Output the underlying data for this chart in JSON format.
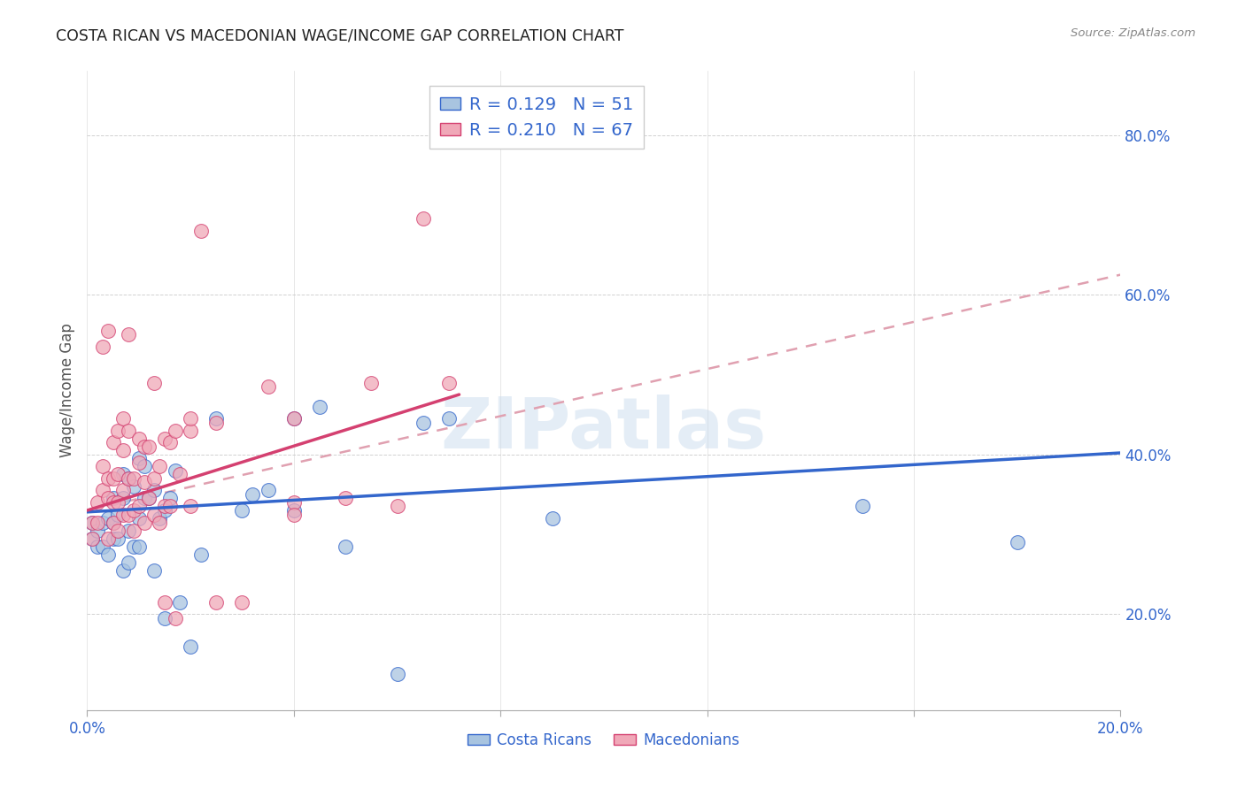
{
  "title": "COSTA RICAN VS MACEDONIAN WAGE/INCOME GAP CORRELATION CHART",
  "source": "Source: ZipAtlas.com",
  "ylabel": "Wage/Income Gap",
  "xlim": [
    0.0,
    0.2
  ],
  "ylim": [
    0.08,
    0.88
  ],
  "yticks": [
    0.2,
    0.4,
    0.6,
    0.8
  ],
  "ytick_labels": [
    "20.0%",
    "40.0%",
    "60.0%",
    "80.0%"
  ],
  "xticks": [
    0.0,
    0.04,
    0.08,
    0.12,
    0.16,
    0.2
  ],
  "xtick_labels": [
    "0.0%",
    "",
    "",
    "",
    "",
    "20.0%"
  ],
  "blue_R": 0.129,
  "blue_N": 51,
  "pink_R": 0.21,
  "pink_N": 67,
  "blue_color": "#a8c4e0",
  "pink_color": "#f0a8b8",
  "trend_blue": "#3366cc",
  "trend_pink": "#d44070",
  "trend_dashed_color": "#e0a0b0",
  "watermark": "ZIPatlas",
  "blue_line_x": [
    0.0,
    0.2
  ],
  "blue_line_y": [
    0.328,
    0.402
  ],
  "pink_line_x": [
    0.0,
    0.072
  ],
  "pink_line_y": [
    0.33,
    0.475
  ],
  "dashed_line_x": [
    0.0,
    0.2
  ],
  "dashed_line_y": [
    0.33,
    0.625
  ],
  "blue_x": [
    0.001,
    0.001,
    0.002,
    0.002,
    0.003,
    0.003,
    0.004,
    0.004,
    0.005,
    0.005,
    0.005,
    0.006,
    0.006,
    0.007,
    0.007,
    0.007,
    0.008,
    0.008,
    0.008,
    0.009,
    0.009,
    0.01,
    0.01,
    0.01,
    0.011,
    0.011,
    0.012,
    0.013,
    0.013,
    0.014,
    0.015,
    0.015,
    0.016,
    0.017,
    0.018,
    0.02,
    0.022,
    0.025,
    0.03,
    0.032,
    0.035,
    0.04,
    0.04,
    0.045,
    0.05,
    0.06,
    0.065,
    0.07,
    0.09,
    0.15,
    0.18
  ],
  "blue_y": [
    0.295,
    0.315,
    0.285,
    0.305,
    0.285,
    0.315,
    0.275,
    0.32,
    0.295,
    0.315,
    0.345,
    0.295,
    0.325,
    0.255,
    0.345,
    0.375,
    0.265,
    0.305,
    0.37,
    0.285,
    0.36,
    0.285,
    0.32,
    0.395,
    0.345,
    0.385,
    0.345,
    0.255,
    0.355,
    0.32,
    0.33,
    0.195,
    0.345,
    0.38,
    0.215,
    0.16,
    0.275,
    0.445,
    0.33,
    0.35,
    0.355,
    0.33,
    0.445,
    0.46,
    0.285,
    0.125,
    0.44,
    0.445,
    0.32,
    0.335,
    0.29
  ],
  "pink_x": [
    0.001,
    0.001,
    0.002,
    0.002,
    0.003,
    0.003,
    0.003,
    0.004,
    0.004,
    0.004,
    0.004,
    0.005,
    0.005,
    0.005,
    0.005,
    0.006,
    0.006,
    0.006,
    0.006,
    0.007,
    0.007,
    0.007,
    0.007,
    0.008,
    0.008,
    0.008,
    0.008,
    0.009,
    0.009,
    0.009,
    0.01,
    0.01,
    0.01,
    0.011,
    0.011,
    0.011,
    0.012,
    0.012,
    0.013,
    0.013,
    0.013,
    0.014,
    0.014,
    0.015,
    0.015,
    0.015,
    0.016,
    0.016,
    0.017,
    0.017,
    0.018,
    0.02,
    0.02,
    0.022,
    0.025,
    0.025,
    0.03,
    0.035,
    0.04,
    0.04,
    0.05,
    0.055,
    0.06,
    0.065,
    0.07,
    0.02,
    0.04
  ],
  "pink_y": [
    0.295,
    0.315,
    0.315,
    0.34,
    0.355,
    0.385,
    0.535,
    0.295,
    0.345,
    0.37,
    0.555,
    0.315,
    0.34,
    0.37,
    0.415,
    0.305,
    0.34,
    0.375,
    0.43,
    0.325,
    0.355,
    0.405,
    0.445,
    0.325,
    0.37,
    0.43,
    0.55,
    0.305,
    0.33,
    0.37,
    0.335,
    0.39,
    0.42,
    0.315,
    0.365,
    0.41,
    0.345,
    0.41,
    0.325,
    0.37,
    0.49,
    0.315,
    0.385,
    0.335,
    0.42,
    0.215,
    0.335,
    0.415,
    0.195,
    0.43,
    0.375,
    0.335,
    0.43,
    0.68,
    0.215,
    0.44,
    0.215,
    0.485,
    0.34,
    0.445,
    0.345,
    0.49,
    0.335,
    0.695,
    0.49,
    0.445,
    0.325
  ]
}
